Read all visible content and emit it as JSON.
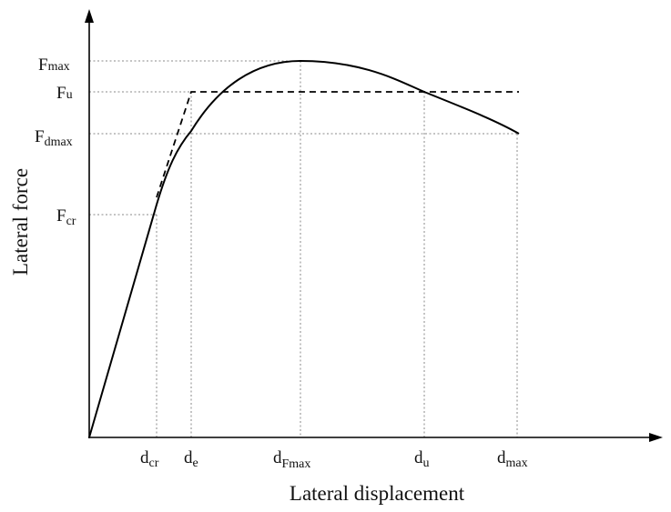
{
  "diagram": {
    "x_axis_title": "Lateral displacement",
    "y_axis_title": "Lateral force",
    "y_markers": [
      {
        "main": "F",
        "sub": "max"
      },
      {
        "main": "F",
        "sub": "u"
      },
      {
        "main": "F",
        "sub": "dmax"
      },
      {
        "main": "F",
        "sub": "cr"
      }
    ],
    "x_markers": [
      {
        "main": "d",
        "sub": "cr"
      },
      {
        "main": "d",
        "sub": "e"
      },
      {
        "main": "d",
        "sub": "Fmax"
      },
      {
        "main": "d",
        "sub": "u"
      },
      {
        "main": "d",
        "sub": "max"
      }
    ],
    "colors": {
      "curve": "#000000",
      "guides": "#888888",
      "text": "#111111"
    }
  }
}
